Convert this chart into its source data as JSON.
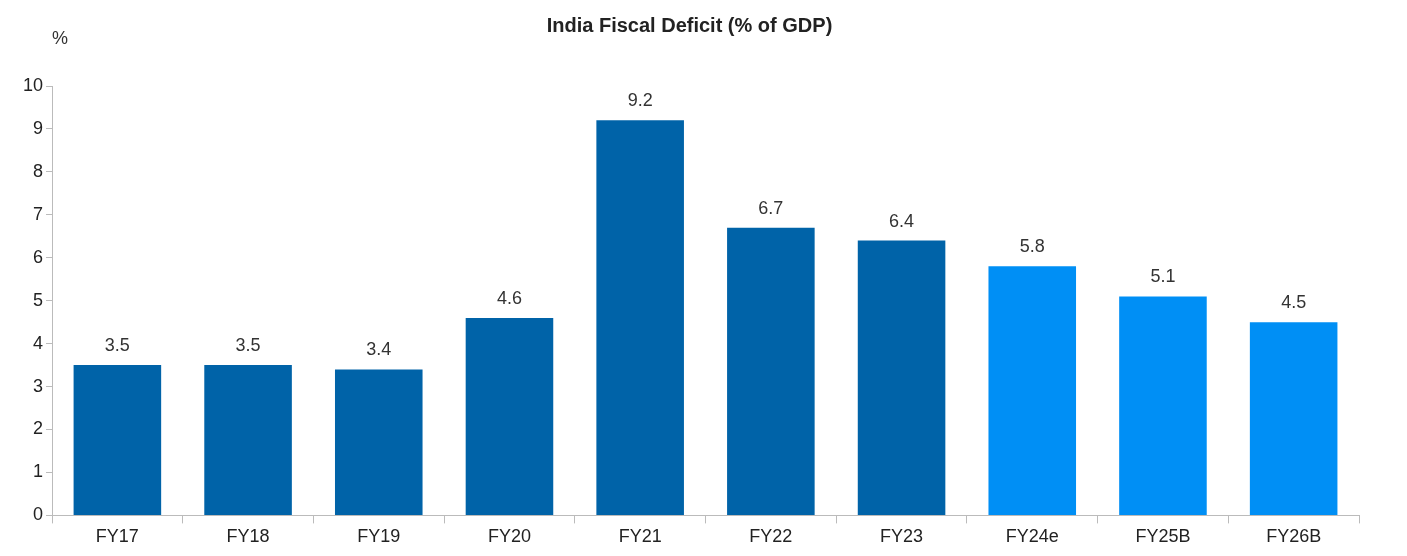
{
  "chart_data": {
    "type": "bar",
    "title": "India Fiscal Deficit (% of GDP)",
    "ylabel": "%",
    "categories": [
      "FY17",
      "FY18",
      "FY19",
      "FY20",
      "FY21",
      "FY22",
      "FY23",
      "FY24e",
      "FY25B",
      "FY26B"
    ],
    "values": [
      3.5,
      3.5,
      3.4,
      4.6,
      9.2,
      6.7,
      6.4,
      5.8,
      5.1,
      4.5
    ],
    "colors": [
      "#0063a8",
      "#0063a8",
      "#0063a8",
      "#0063a8",
      "#0063a8",
      "#0063a8",
      "#0063a8",
      "#008ff5",
      "#008ff5",
      "#008ff5"
    ],
    "ylim": [
      0,
      10
    ],
    "yticks": [
      0,
      1,
      2,
      3,
      4,
      5,
      6,
      7,
      8,
      9,
      10
    ],
    "data_labels": true,
    "grid": false,
    "legend": false
  }
}
